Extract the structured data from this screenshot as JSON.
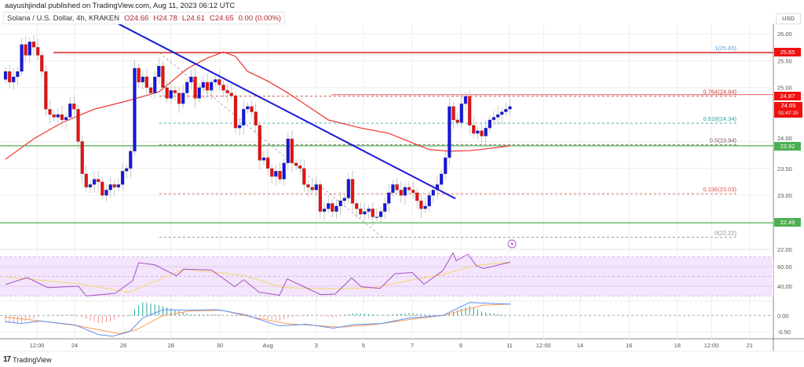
{
  "header": {
    "publisher": "aayushjindal published on TradingView.com, Aug 11, 2023 06:12 UTC",
    "symbol": "Solana / U.S. Dollar, 4h, KRAKEN",
    "open": "O24.66",
    "high": "H24.78",
    "low": "L24.61",
    "close": "C24.65",
    "change": "0.00 (0.00%)"
  },
  "currency_label": "USD",
  "footer": {
    "logo_mark": "17",
    "logo_text": "TradingView"
  },
  "colors": {
    "up": "#1515e0",
    "down": "#e81010",
    "ma": "#f03030",
    "trendline": "#1a1ad8",
    "support": "#4caf50",
    "resistance": "#d01010",
    "rsi": "#a64fc4",
    "rsi_ma": "#f5d76e",
    "macd": "#5b8ff9",
    "signal": "#ff9c50"
  },
  "price_badges": {
    "resistance": "25.65",
    "fib_764": "24.87",
    "last": "24.65",
    "countdown": "01:47:15",
    "support_upper": "23.92",
    "support_lower": "22.49"
  },
  "chart_data": {
    "type": "candlestick",
    "price_axis": {
      "range": [
        21.95,
        26.2
      ],
      "ticks": [
        "26.00",
        "25.50",
        "25.00",
        "24.00",
        "23.50",
        "23.00",
        "22.00"
      ]
    },
    "x_ticks": [
      {
        "label": "12:00",
        "index": 7.8
      },
      {
        "label": "24",
        "index": 17.1
      },
      {
        "label": "26",
        "index": 29.2
      },
      {
        "label": "28",
        "index": 41.0
      },
      {
        "label": "30",
        "index": 53.1
      },
      {
        "label": "Aug",
        "index": 65.0
      },
      {
        "label": "3",
        "index": 77.0
      },
      {
        "label": "5",
        "index": 88.7
      },
      {
        "label": "7",
        "index": 100.8
      },
      {
        "label": "9",
        "index": 112.8
      },
      {
        "label": "11",
        "index": 124.9
      },
      {
        "label": "12:00",
        "index": 133.3
      },
      {
        "label": "14",
        "index": 142.4
      },
      {
        "label": "16",
        "index": 154.5
      },
      {
        "label": "18",
        "index": 166.5
      },
      {
        "label": "12:00",
        "index": 174.9
      },
      {
        "label": "21",
        "index": 184.4
      }
    ],
    "closes": [
      25.3,
      25.1,
      25.2,
      25.3,
      25.8,
      25.6,
      25.85,
      25.75,
      25.6,
      25.3,
      24.6,
      24.5,
      24.45,
      24.5,
      24.4,
      24.45,
      24.7,
      24.6,
      24.0,
      23.4,
      23.15,
      23.2,
      23.3,
      23.25,
      23.0,
      23.1,
      23.2,
      23.15,
      23.2,
      23.45,
      23.5,
      23.82,
      25.36,
      25.1,
      25.2,
      25.0,
      24.9,
      25.2,
      25.4,
      25.0,
      24.8,
      24.95,
      24.9,
      24.7,
      24.9,
      25.1,
      25.2,
      24.8,
      25.0,
      25.1,
      24.95,
      25.1,
      25.15,
      25.05,
      24.95,
      24.9,
      24.85,
      24.25,
      24.3,
      24.6,
      24.65,
      24.55,
      24.3,
      23.65,
      23.7,
      23.5,
      23.35,
      23.45,
      23.3,
      23.6,
      24.05,
      23.6,
      23.55,
      23.5,
      23.2,
      23.15,
      23.1,
      23.2,
      22.7,
      22.75,
      22.85,
      22.7,
      22.8,
      22.9,
      22.95,
      23.3,
      22.85,
      22.75,
      22.65,
      22.7,
      22.75,
      22.6,
      22.6,
      22.7,
      22.85,
      23.05,
      23.2,
      23.1,
      23.0,
      23.15,
      23.1,
      23.05,
      22.9,
      22.75,
      22.8,
      23.0,
      23.1,
      23.2,
      23.4,
      23.7,
      24.65,
      24.4,
      24.35,
      24.7,
      24.84,
      24.3,
      24.15,
      24.2,
      24.1,
      24.25,
      24.4,
      24.45,
      24.5,
      24.55,
      24.6,
      24.65
    ],
    "first_open": 25.15,
    "moving_average": [
      [
        0,
        23.67
      ],
      [
        7,
        24.05
      ],
      [
        14,
        24.35
      ],
      [
        22,
        24.6
      ],
      [
        30,
        24.75
      ],
      [
        38,
        24.92
      ],
      [
        45,
        25.35
      ],
      [
        50,
        25.55
      ],
      [
        54,
        25.66
      ],
      [
        57,
        25.58
      ],
      [
        60,
        25.3
      ],
      [
        65,
        25.12
      ],
      [
        70,
        24.9
      ],
      [
        75,
        24.65
      ],
      [
        80,
        24.4
      ],
      [
        88,
        24.25
      ],
      [
        95,
        24.15
      ],
      [
        100,
        24.0
      ],
      [
        105,
        23.85
      ],
      [
        110,
        23.82
      ],
      [
        115,
        23.83
      ],
      [
        120,
        23.87
      ],
      [
        125,
        23.92
      ]
    ],
    "trendline": {
      "from": [
        27.8,
        26.19
      ],
      "to": [
        111.5,
        22.94
      ]
    },
    "horizontal_levels": [
      {
        "name": "resistance",
        "price": 25.65,
        "from_index": 11.9,
        "color": "#d01010"
      },
      {
        "name": "resistance-2",
        "price": 24.87,
        "from_index": 80.7,
        "color": "#f08080"
      },
      {
        "name": "support-upper",
        "price": 23.92,
        "from_index": -2,
        "color": "#4caf50"
      },
      {
        "name": "support-lower",
        "price": 22.49,
        "from_index": -2,
        "color": "#4caf50"
      }
    ],
    "fibonacci": {
      "from_index": 38.1,
      "diagonal": {
        "from": [
          38.1,
          25.65
        ],
        "to": [
          93.4,
          22.22
        ]
      },
      "levels": [
        {
          "label": "1(25.65)",
          "price": 25.65,
          "color": "#5b9bd5"
        },
        {
          "label": "0.764(24.84)",
          "price": 24.84,
          "color": "#c0392b"
        },
        {
          "label": "0.618(24.34)",
          "price": 24.34,
          "color": "#26a69a"
        },
        {
          "label": "0.5(23.94)",
          "price": 23.94,
          "color": "#7a5252"
        },
        {
          "label": "0.236(23.03)",
          "price": 23.03,
          "color": "#e05050"
        },
        {
          "label": "0(22.22)",
          "price": 22.22,
          "color": "#888888"
        }
      ]
    },
    "rsi": {
      "ticks": [
        "60.00",
        "40.00"
      ],
      "band": [
        30,
        70
      ],
      "values": [
        [
          0,
          41.8
        ],
        [
          5.4,
          48.8
        ],
        [
          10.5,
          38.6
        ],
        [
          18.1,
          40
        ],
        [
          20,
          30
        ],
        [
          27.2,
          32.8
        ],
        [
          31.5,
          45.6
        ],
        [
          33,
          64
        ],
        [
          37,
          61.8
        ],
        [
          42.4,
          50.6
        ],
        [
          44.2,
          57.4
        ],
        [
          51,
          56.6
        ],
        [
          56.8,
          39.5
        ],
        [
          59,
          46.7
        ],
        [
          62.8,
          34
        ],
        [
          67.9,
          30.7
        ],
        [
          69.8,
          47.5
        ],
        [
          73,
          41.4
        ],
        [
          78,
          31.5
        ],
        [
          81.7,
          32
        ],
        [
          85.8,
          48.5
        ],
        [
          88.1,
          39.5
        ],
        [
          92.8,
          37.8
        ],
        [
          96.5,
          52.8
        ],
        [
          100.8,
          54
        ],
        [
          103.7,
          42
        ],
        [
          108.4,
          56
        ],
        [
          110.9,
          74
        ],
        [
          111.7,
          66
        ],
        [
          114.6,
          72.6
        ],
        [
          116.7,
          60.8
        ],
        [
          118.5,
          58
        ],
        [
          125.1,
          64.6
        ]
      ],
      "ma": [
        [
          0,
          49.4
        ],
        [
          18,
          42.6
        ],
        [
          30.7,
          33.8
        ],
        [
          44.2,
          57.4
        ],
        [
          52.6,
          54
        ],
        [
          59.4,
          50.6
        ],
        [
          68.7,
          38.6
        ],
        [
          83,
          37.3
        ],
        [
          91.4,
          38.6
        ],
        [
          99.9,
          45.8
        ],
        [
          108.3,
          52
        ],
        [
          116.7,
          61.4
        ],
        [
          125.2,
          64.6
        ]
      ]
    },
    "macd": {
      "ticks": [
        "0.00",
        "-0.50"
      ],
      "macd": [
        [
          0,
          -0.19
        ],
        [
          3.7,
          -0.25
        ],
        [
          8.8,
          -0.17
        ],
        [
          17.2,
          -0.29
        ],
        [
          23.1,
          -0.59
        ],
        [
          26.5,
          -0.64
        ],
        [
          30.7,
          -0.5
        ],
        [
          34.1,
          -0.07
        ],
        [
          39.1,
          0.18
        ],
        [
          45.9,
          0.16
        ],
        [
          52.6,
          0.18
        ],
        [
          59.4,
          0.02
        ],
        [
          67.8,
          -0.32
        ],
        [
          74.5,
          -0.27
        ],
        [
          81.3,
          -0.39
        ],
        [
          86.4,
          -0.28
        ],
        [
          93.1,
          -0.25
        ],
        [
          99.9,
          -0.08
        ],
        [
          108.3,
          0.0
        ],
        [
          115,
          0.4
        ],
        [
          125.2,
          0.35
        ]
      ],
      "signal": [
        [
          0,
          -0.05
        ],
        [
          8.8,
          -0.17
        ],
        [
          18,
          -0.32
        ],
        [
          28.2,
          -0.56
        ],
        [
          32.4,
          -0.44
        ],
        [
          39.1,
          0.0
        ],
        [
          45.9,
          0.14
        ],
        [
          53.5,
          0.16
        ],
        [
          61.1,
          -0.05
        ],
        [
          69.5,
          -0.25
        ],
        [
          83,
          -0.36
        ],
        [
          91.4,
          -0.28
        ],
        [
          99.9,
          -0.13
        ],
        [
          108.3,
          0.0
        ],
        [
          118.4,
          0.32
        ],
        [
          125.2,
          0.35
        ]
      ]
    }
  }
}
